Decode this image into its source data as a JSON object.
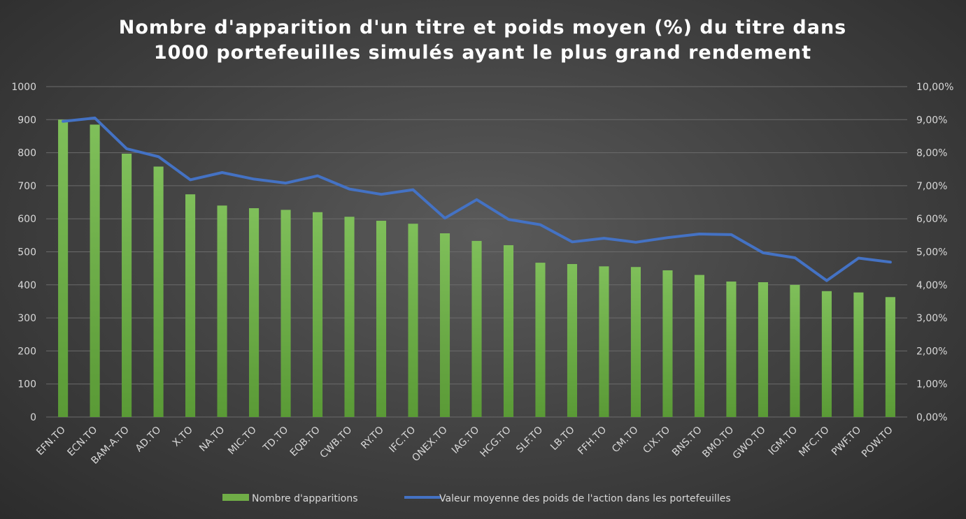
{
  "chart_data": {
    "type": "bar",
    "title_lines": [
      "Nombre d'apparition d'un titre et poids moyen (%) du titre dans",
      "1000 portefeuilles simulés ayant le plus grand rendement"
    ],
    "categories": [
      "EFN.TO",
      "ECN.TO",
      "BAM-A.TO",
      "AD.TO",
      "X.TO",
      "NA.TO",
      "MIC.TO",
      "TD.TO",
      "EQB.TO",
      "CWB.TO",
      "RY.TO",
      "IFC.TO",
      "ONEX.TO",
      "IAG.TO",
      "HCG.TO",
      "SLF.TO",
      "LB.TO",
      "FFH.TO",
      "CM.TO",
      "CIX.TO",
      "BNS.TO",
      "BMO.TO",
      "GWO.TO",
      "IGM.TO",
      "MFC.TO",
      "PWF.TO",
      "POW.TO"
    ],
    "series": [
      {
        "name": "Nombre d'apparitions",
        "type": "bar",
        "axis": "left",
        "color": "#70ad47",
        "values": [
          900,
          885,
          797,
          758,
          674,
          640,
          632,
          627,
          620,
          606,
          594,
          585,
          556,
          533,
          520,
          467,
          463,
          456,
          454,
          444,
          430,
          410,
          408,
          400,
          381,
          377,
          363
        ]
      },
      {
        "name": "Valeur moyenne des poids de l'action dans les portefeuilles",
        "type": "line",
        "axis": "right",
        "color": "#4472c4",
        "values": [
          8.95,
          9.05,
          8.12,
          7.88,
          7.18,
          7.4,
          7.2,
          7.08,
          7.3,
          6.9,
          6.74,
          6.88,
          6.02,
          6.58,
          5.98,
          5.82,
          5.3,
          5.41,
          5.29,
          5.43,
          5.54,
          5.52,
          4.97,
          4.82,
          4.13,
          4.81,
          4.69
        ]
      }
    ],
    "y_left": {
      "ylim": [
        0,
        1000
      ],
      "ticks": [
        "0",
        "100",
        "200",
        "300",
        "400",
        "500",
        "600",
        "700",
        "800",
        "900",
        "1000"
      ]
    },
    "y_right": {
      "ylim": [
        0,
        10
      ],
      "ticks": [
        "0,00%",
        "1,00%",
        "2,00%",
        "3,00%",
        "4,00%",
        "5,00%",
        "6,00%",
        "7,00%",
        "8,00%",
        "9,00%",
        "10,00%"
      ]
    },
    "grid": true,
    "legend_position": "bottom"
  }
}
